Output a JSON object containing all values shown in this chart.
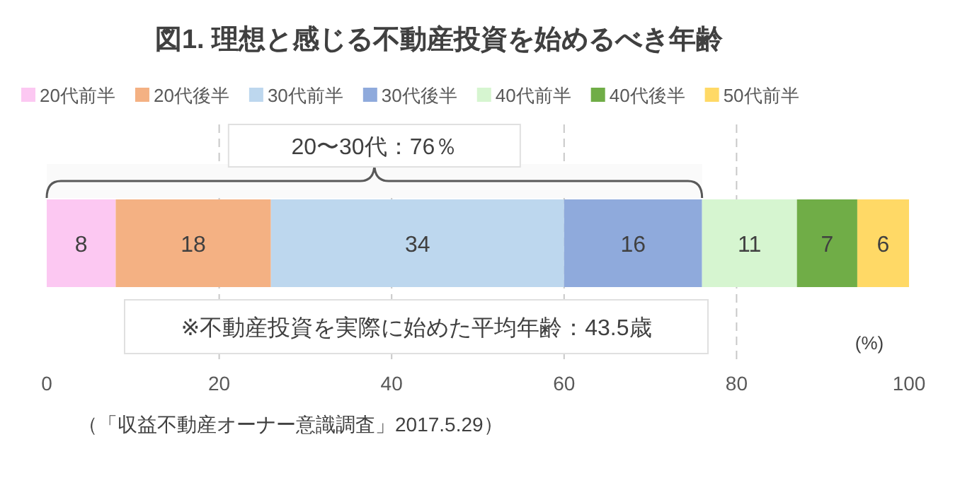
{
  "chart_data": {
    "type": "bar",
    "title": "図1. 理想と感じる不動産投資を始めるべき年齢",
    "orientation": "horizontal",
    "stacked": true,
    "categories": [
      null
    ],
    "series": [
      {
        "name": "20代前半",
        "color": "#fcc8f2",
        "values": [
          8
        ]
      },
      {
        "name": "20代後半",
        "color": "#f4b183",
        "values": [
          18
        ]
      },
      {
        "name": "30代前半",
        "color": "#bdd7ee",
        "values": [
          34
        ]
      },
      {
        "name": "30代後半",
        "color": "#8faadc",
        "values": [
          16
        ]
      },
      {
        "name": "40代前半",
        "color": "#d6f5d0",
        "values": [
          11
        ]
      },
      {
        "name": "40代後半",
        "color": "#70ad47",
        "values": [
          7
        ]
      },
      {
        "name": "50代前半",
        "color": "#ffd966",
        "values": [
          6
        ]
      }
    ],
    "xlim": [
      0,
      100
    ],
    "xticks": [
      0,
      20,
      40,
      60,
      80,
      100
    ],
    "xlabel": "(%)",
    "grid": "x",
    "line_style": "dashed",
    "legend": "top",
    "data_labels": true,
    "bands": [
      {
        "axis": "x",
        "from": 0,
        "to": 76,
        "label": "20〜30代：76％"
      }
    ],
    "annotations": [
      "※不動産投資を実際に始めた平均年齢：43.5歳",
      "（「収益不動産オーナー意識調査」2017.5.29）"
    ]
  }
}
